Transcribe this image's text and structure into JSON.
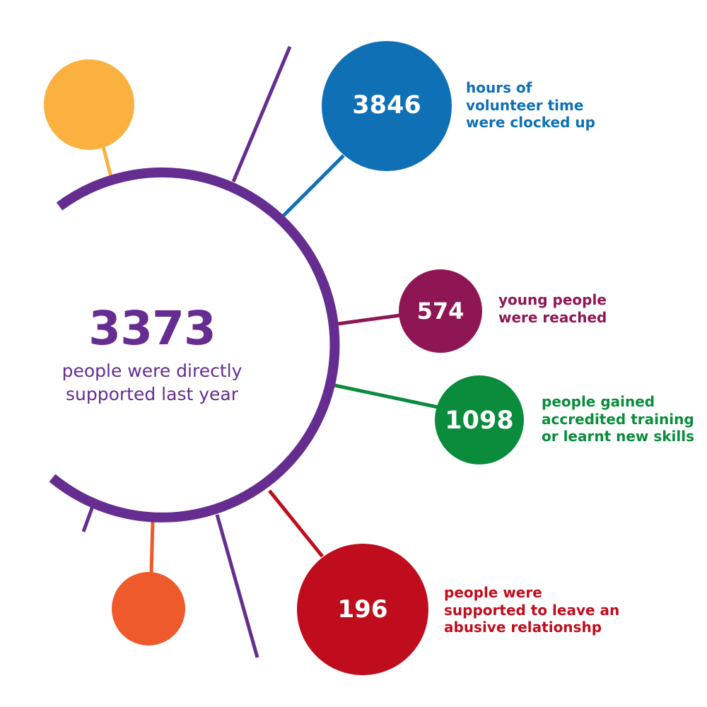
{
  "colors": {
    "hub": "#652d90",
    "volunteer": "#0f70b6",
    "young": "#8f1655",
    "training": "#0a8c3c",
    "abuse": "#c00d1e",
    "decor_yellow": "#fab140",
    "decor_orange": "#ee5a2b"
  },
  "hub": {
    "number": "3373",
    "caption_lines": [
      "people were directly",
      "supported last year"
    ]
  },
  "stats": [
    {
      "key": "volunteer",
      "number": "3846",
      "caption_lines": [
        "hours of",
        "volunteer time",
        "were clocked up"
      ]
    },
    {
      "key": "young",
      "number": "574",
      "caption_lines": [
        "young people",
        "were reached"
      ]
    },
    {
      "key": "training",
      "number": "1098",
      "caption_lines": [
        "people gained",
        "accredited training",
        "or learnt new skills"
      ]
    },
    {
      "key": "abuse",
      "number": "196",
      "caption_lines": [
        "people were",
        "supported to leave an",
        "abusive relationshp"
      ]
    }
  ]
}
